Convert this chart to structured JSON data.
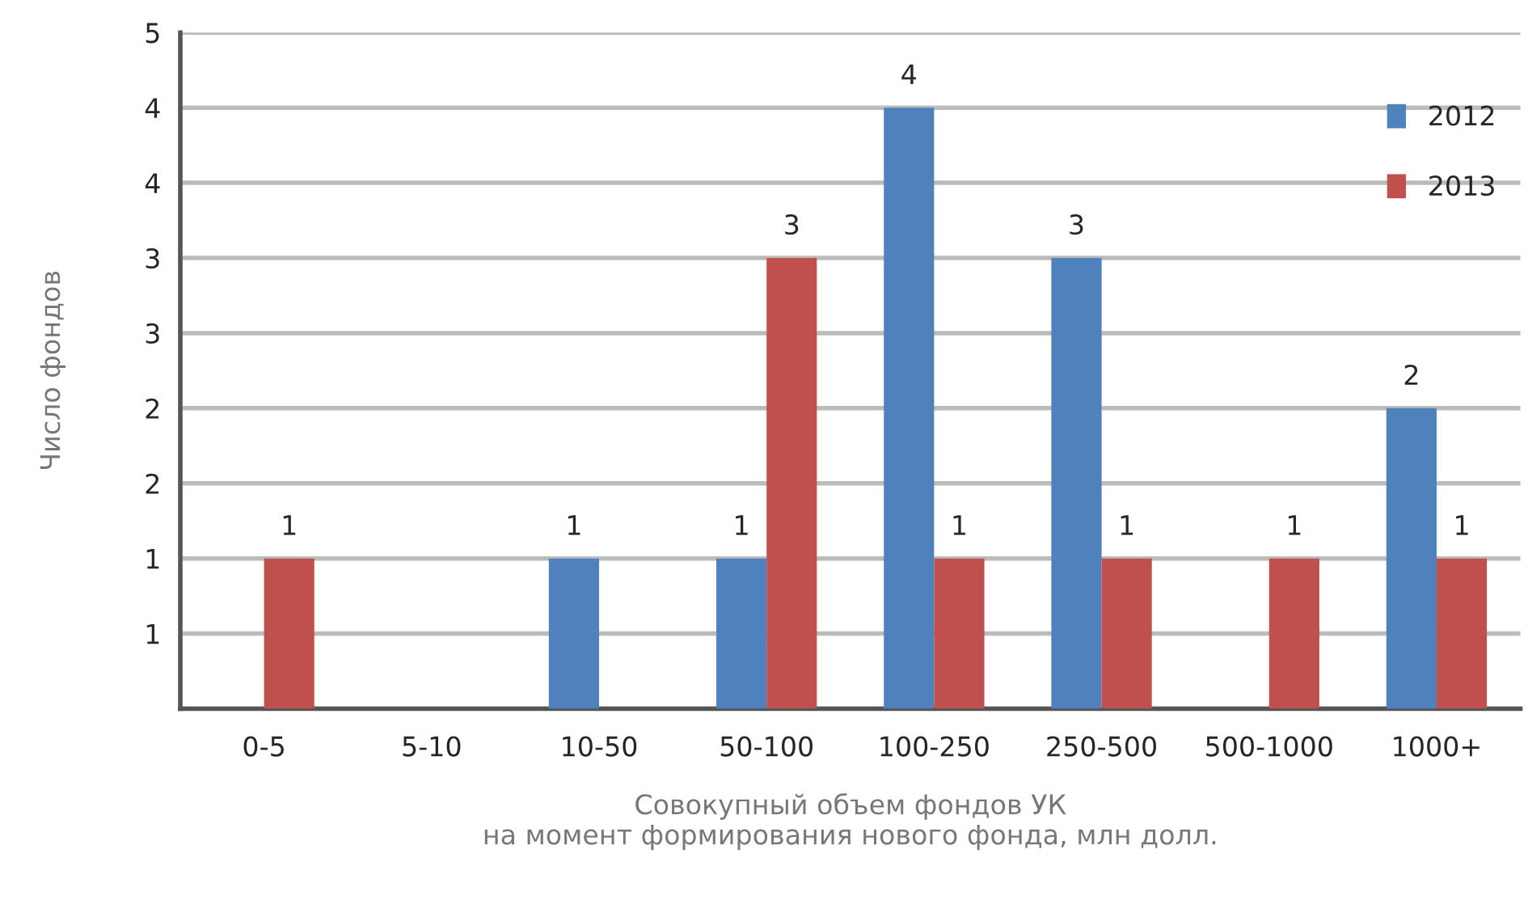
{
  "chart_data": {
    "type": "bar",
    "xlabel": "Совокупный объем фондов УК\nна момент формирования нового фонда, млн долл.",
    "ylabel": "Число фондов",
    "categories": [
      "0-5",
      "5-10",
      "10-50",
      "50-100",
      "100-250",
      "250-500",
      "500-1000",
      "1000+"
    ],
    "series": [
      {
        "name": "2012",
        "color": "#4f81bd",
        "values": [
          null,
          null,
          1,
          1,
          4,
          3,
          null,
          2
        ]
      },
      {
        "name": "2013",
        "color": "#c0504d",
        "values": [
          1,
          null,
          null,
          3,
          1,
          1,
          1,
          1
        ]
      }
    ],
    "ylim": [
      0,
      4.5
    ],
    "yticks": [
      {
        "value": 0,
        "label": null
      },
      {
        "value": 0.5,
        "label": "1"
      },
      {
        "value": 1,
        "label": "1"
      },
      {
        "value": 1.5,
        "label": "2"
      },
      {
        "value": 2,
        "label": "2"
      },
      {
        "value": 2.5,
        "label": "3"
      },
      {
        "value": 3,
        "label": "3"
      },
      {
        "value": 3.5,
        "label": "4"
      },
      {
        "value": 4,
        "label": "4"
      },
      {
        "value": 4.5,
        "label": "5"
      }
    ],
    "grid": "y",
    "legend": "top right",
    "data_labels": true
  }
}
